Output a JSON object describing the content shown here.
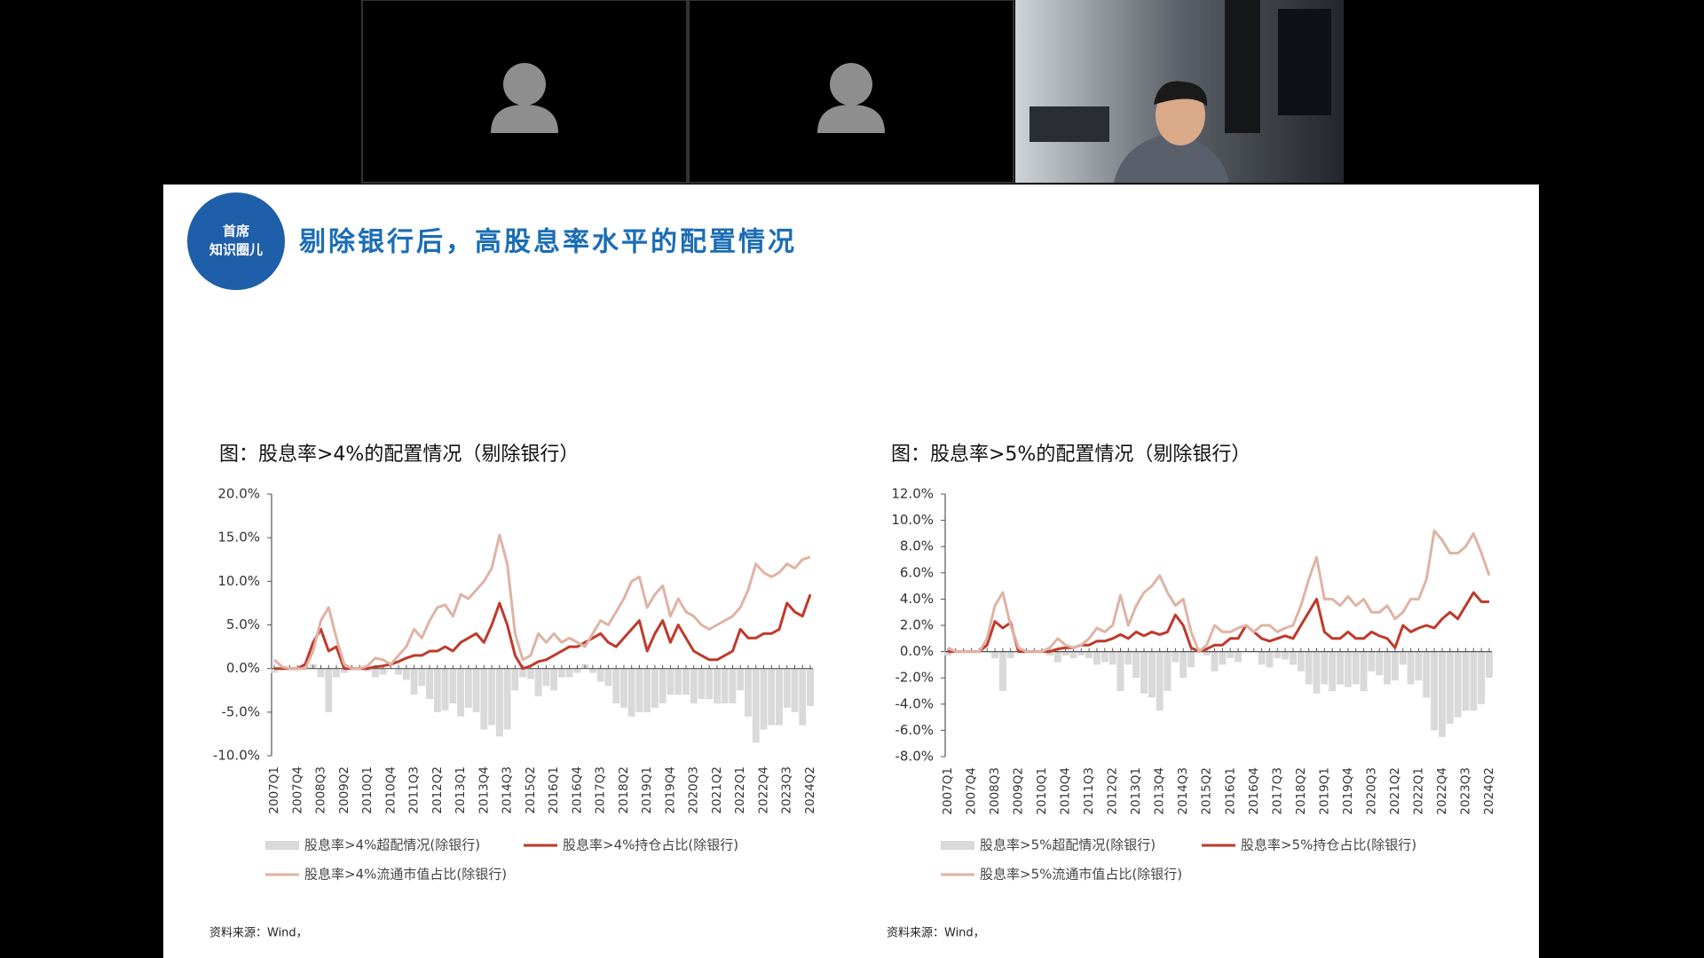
{
  "slide": {
    "logo": [
      "首席",
      "知识圈儿"
    ],
    "title": "剔除银行后，高股息率水平的配置情况"
  },
  "chart_data": [
    {
      "type": "combo",
      "title": "图：股息率>4%的配置情况（剔除银行）",
      "note": "资料来源：Wind，",
      "categories": [
        "2007Q1",
        null,
        null,
        "2007Q4",
        null,
        null,
        "2008Q3",
        null,
        null,
        "2009Q2",
        null,
        null,
        "2010Q1",
        null,
        null,
        "2010Q4",
        null,
        null,
        "2011Q3",
        null,
        null,
        "2012Q2",
        null,
        null,
        "2013Q1",
        null,
        null,
        "2013Q4",
        null,
        null,
        "2014Q3",
        null,
        null,
        "2015Q2",
        null,
        null,
        "2016Q1",
        null,
        null,
        "2016Q4",
        null,
        null,
        "2017Q3",
        null,
        null,
        "2018Q2",
        null,
        null,
        "2019Q1",
        null,
        null,
        "2019Q4",
        null,
        null,
        "2020Q3",
        null,
        null,
        "2021Q2",
        null,
        null,
        "2022Q1",
        null,
        null,
        "2022Q4",
        null,
        null,
        "2023Q3",
        null,
        null,
        "2024Q2"
      ],
      "ylim": [
        -10,
        20
      ],
      "yticks": [
        {
          "value": -10,
          "label": "-10.0%"
        },
        {
          "value": -5,
          "label": "-5.0%"
        },
        {
          "value": 0,
          "label": "0.0%"
        },
        {
          "value": 5,
          "label": "5.0%"
        },
        {
          "value": 10,
          "label": "10.0%"
        },
        {
          "value": 15,
          "label": "15.0%"
        },
        {
          "value": 20,
          "label": "20.0%"
        }
      ],
      "grid": false,
      "series": [
        {
          "name": "股息率>4%超配情况(除银行)",
          "type": "bar",
          "color": "#d9d9d9",
          "values": [
            -0.5,
            0,
            0,
            0,
            0.3,
            0.5,
            -1.0,
            -5.0,
            -1.0,
            -0.5,
            0,
            0,
            -0.3,
            -1.0,
            -0.7,
            0,
            -0.7,
            -1.3,
            -3.0,
            -2.0,
            -3.5,
            -5.0,
            -4.8,
            -4.0,
            -5.5,
            -4.5,
            -5.0,
            -7.0,
            -6.5,
            -7.8,
            -7.0,
            -2.5,
            -1.0,
            -1.2,
            -3.2,
            -2.0,
            -2.5,
            -1.0,
            -1.0,
            -0.5,
            0.5,
            -0.5,
            -1.5,
            -2.0,
            -4.0,
            -4.5,
            -5.5,
            -5.0,
            -5.0,
            -4.5,
            -4.0,
            -3.0,
            -3.0,
            -3.0,
            -4.0,
            -3.5,
            -3.5,
            -4.0,
            -4.0,
            -4.0,
            -2.5,
            -5.5,
            -8.5,
            -7.0,
            -6.5,
            -6.5,
            -4.5,
            -5.0,
            -6.5,
            -4.3
          ]
        },
        {
          "name": "股息率>4%持仓占比(除银行)",
          "type": "line",
          "color": "#c0392b",
          "values": [
            0,
            0,
            0,
            0,
            0.5,
            3.0,
            4.5,
            2.0,
            2.5,
            0,
            0,
            0,
            0,
            0.2,
            0.3,
            0.5,
            0.8,
            1.2,
            1.5,
            1.5,
            2.0,
            2.0,
            2.5,
            2.0,
            3.0,
            3.5,
            4.0,
            3.0,
            5.0,
            7.5,
            5.0,
            1.5,
            0,
            0.3,
            0.8,
            1.0,
            1.5,
            2.0,
            2.5,
            2.5,
            3.0,
            3.5,
            4.0,
            3.0,
            2.5,
            3.5,
            4.5,
            5.5,
            2.0,
            4.0,
            5.5,
            3.0,
            5.0,
            3.5,
            2.0,
            1.5,
            1.0,
            1.0,
            1.5,
            2.0,
            4.5,
            3.5,
            3.5,
            4.0,
            4.0,
            4.5,
            7.5,
            6.5,
            6.0,
            8.5
          ]
        },
        {
          "name": "股息率>4%流通市值占比(除银行)",
          "type": "line",
          "color": "#dfb3a4",
          "values": [
            1.0,
            0.2,
            0,
            0,
            0,
            2.0,
            5.5,
            7.0,
            3.5,
            0.5,
            0,
            0,
            0.3,
            1.2,
            1.0,
            0.5,
            1.5,
            2.5,
            4.5,
            3.5,
            5.5,
            7.0,
            7.3,
            6.0,
            8.5,
            8.0,
            9.0,
            10.0,
            11.5,
            15.3,
            12.0,
            4.0,
            1.0,
            1.5,
            4.0,
            3.0,
            4.0,
            3.0,
            3.5,
            3.0,
            2.5,
            4.0,
            5.5,
            5.0,
            6.5,
            8.0,
            10.0,
            10.5,
            7.0,
            8.5,
            9.5,
            6.0,
            8.0,
            6.5,
            6.0,
            5.0,
            4.5,
            5.0,
            5.5,
            6.0,
            7.0,
            9.0,
            12.0,
            11.0,
            10.5,
            11.0,
            12.0,
            11.5,
            12.5,
            12.8
          ]
        }
      ]
    },
    {
      "type": "combo",
      "title": "图：股息率>5%的配置情况（剔除银行）",
      "note": "资料来源：Wind，",
      "categories": [
        "2007Q1",
        null,
        null,
        "2007Q4",
        null,
        null,
        "2008Q3",
        null,
        null,
        "2009Q2",
        null,
        null,
        "2010Q1",
        null,
        null,
        "2010Q4",
        null,
        null,
        "2011Q3",
        null,
        null,
        "2012Q2",
        null,
        null,
        "2013Q1",
        null,
        null,
        "2013Q4",
        null,
        null,
        "2014Q3",
        null,
        null,
        "2015Q2",
        null,
        null,
        "2016Q1",
        null,
        null,
        "2016Q4",
        null,
        null,
        "2017Q3",
        null,
        null,
        "2018Q2",
        null,
        null,
        "2019Q1",
        null,
        null,
        "2019Q4",
        null,
        null,
        "2020Q3",
        null,
        null,
        "2021Q2",
        null,
        null,
        "2022Q1",
        null,
        null,
        "2022Q4",
        null,
        null,
        "2023Q3",
        null,
        null,
        "2024Q2"
      ],
      "ylim": [
        -8,
        12
      ],
      "yticks": [
        {
          "value": -8,
          "label": "-8.0%"
        },
        {
          "value": -6,
          "label": "-6.0%"
        },
        {
          "value": -4,
          "label": "-4.0%"
        },
        {
          "value": -2,
          "label": "-2.0%"
        },
        {
          "value": 0,
          "label": "0.0%"
        },
        {
          "value": 2,
          "label": "2.0%"
        },
        {
          "value": 4,
          "label": "4.0%"
        },
        {
          "value": 6,
          "label": "6.0%"
        },
        {
          "value": 8,
          "label": "8.0%"
        },
        {
          "value": 10,
          "label": "10.0%"
        },
        {
          "value": 12,
          "label": "12.0%"
        }
      ],
      "grid": false,
      "series": [
        {
          "name": "股息率>5%超配情况(除银行)",
          "type": "bar",
          "color": "#d9d9d9",
          "values": [
            -0.3,
            0,
            0,
            0,
            0,
            0,
            -0.5,
            -3.0,
            -0.5,
            0,
            0,
            0,
            0,
            -0.3,
            -0.8,
            -0.3,
            -0.5,
            -0.3,
            -0.5,
            -1.0,
            -0.8,
            -1.0,
            -3.0,
            -1.0,
            -2.0,
            -3.2,
            -3.5,
            -4.5,
            -3.0,
            -0.8,
            -2.0,
            -1.2,
            0,
            -0.3,
            -1.5,
            -1.0,
            -0.5,
            -0.8,
            0,
            0,
            -1.0,
            -1.2,
            -0.5,
            -0.6,
            -1.0,
            -1.5,
            -2.5,
            -3.2,
            -2.5,
            -3.0,
            -2.5,
            -2.7,
            -2.5,
            -3.0,
            -1.5,
            -1.8,
            -2.5,
            -2.2,
            -1.0,
            -2.5,
            -2.2,
            -3.5,
            -6.0,
            -6.5,
            -5.5,
            -5.0,
            -4.5,
            -4.5,
            -4.0,
            -2.0
          ]
        },
        {
          "name": "股息率>5%持仓占比(除银行)",
          "type": "line",
          "color": "#c0392b",
          "values": [
            0,
            0,
            0,
            0,
            0,
            0.5,
            2.3,
            1.8,
            2.2,
            0,
            0,
            0,
            0,
            0,
            0.2,
            0.3,
            0.3,
            0.5,
            0.5,
            0.8,
            0.8,
            1.0,
            1.3,
            1.0,
            1.5,
            1.2,
            1.5,
            1.3,
            1.5,
            2.8,
            2.0,
            0.3,
            0,
            0.2,
            0.5,
            0.5,
            1.0,
            1.0,
            2.0,
            1.5,
            1.0,
            0.8,
            1.0,
            1.2,
            1.0,
            2.0,
            3.0,
            4.0,
            1.5,
            1.0,
            1.0,
            1.5,
            1.0,
            1.0,
            1.5,
            1.2,
            1.0,
            0.3,
            2.0,
            1.5,
            1.8,
            2.0,
            1.8,
            2.5,
            3.0,
            2.5,
            3.5,
            4.5,
            3.8,
            3.8
          ]
        },
        {
          "name": "股息率>5%流通市值占比(除银行)",
          "type": "line",
          "color": "#dfb3a4",
          "values": [
            0.3,
            0,
            0,
            0,
            0,
            1.0,
            3.5,
            4.5,
            2.0,
            0.3,
            0,
            0,
            0,
            0.3,
            1.0,
            0.5,
            0.3,
            0.5,
            1.0,
            1.8,
            1.5,
            2.0,
            4.3,
            2.0,
            3.5,
            4.5,
            5.0,
            5.8,
            4.5,
            3.5,
            4.0,
            1.5,
            0,
            0.5,
            2.0,
            1.5,
            1.5,
            1.8,
            2.0,
            1.5,
            2.0,
            2.0,
            1.5,
            1.8,
            2.0,
            3.5,
            5.5,
            7.2,
            4.0,
            4.0,
            3.5,
            4.2,
            3.5,
            4.0,
            3.0,
            3.0,
            3.5,
            2.5,
            3.0,
            4.0,
            4.0,
            5.5,
            9.2,
            8.5,
            7.5,
            7.5,
            8.0,
            9.0,
            7.5,
            5.8
          ]
        }
      ]
    }
  ]
}
